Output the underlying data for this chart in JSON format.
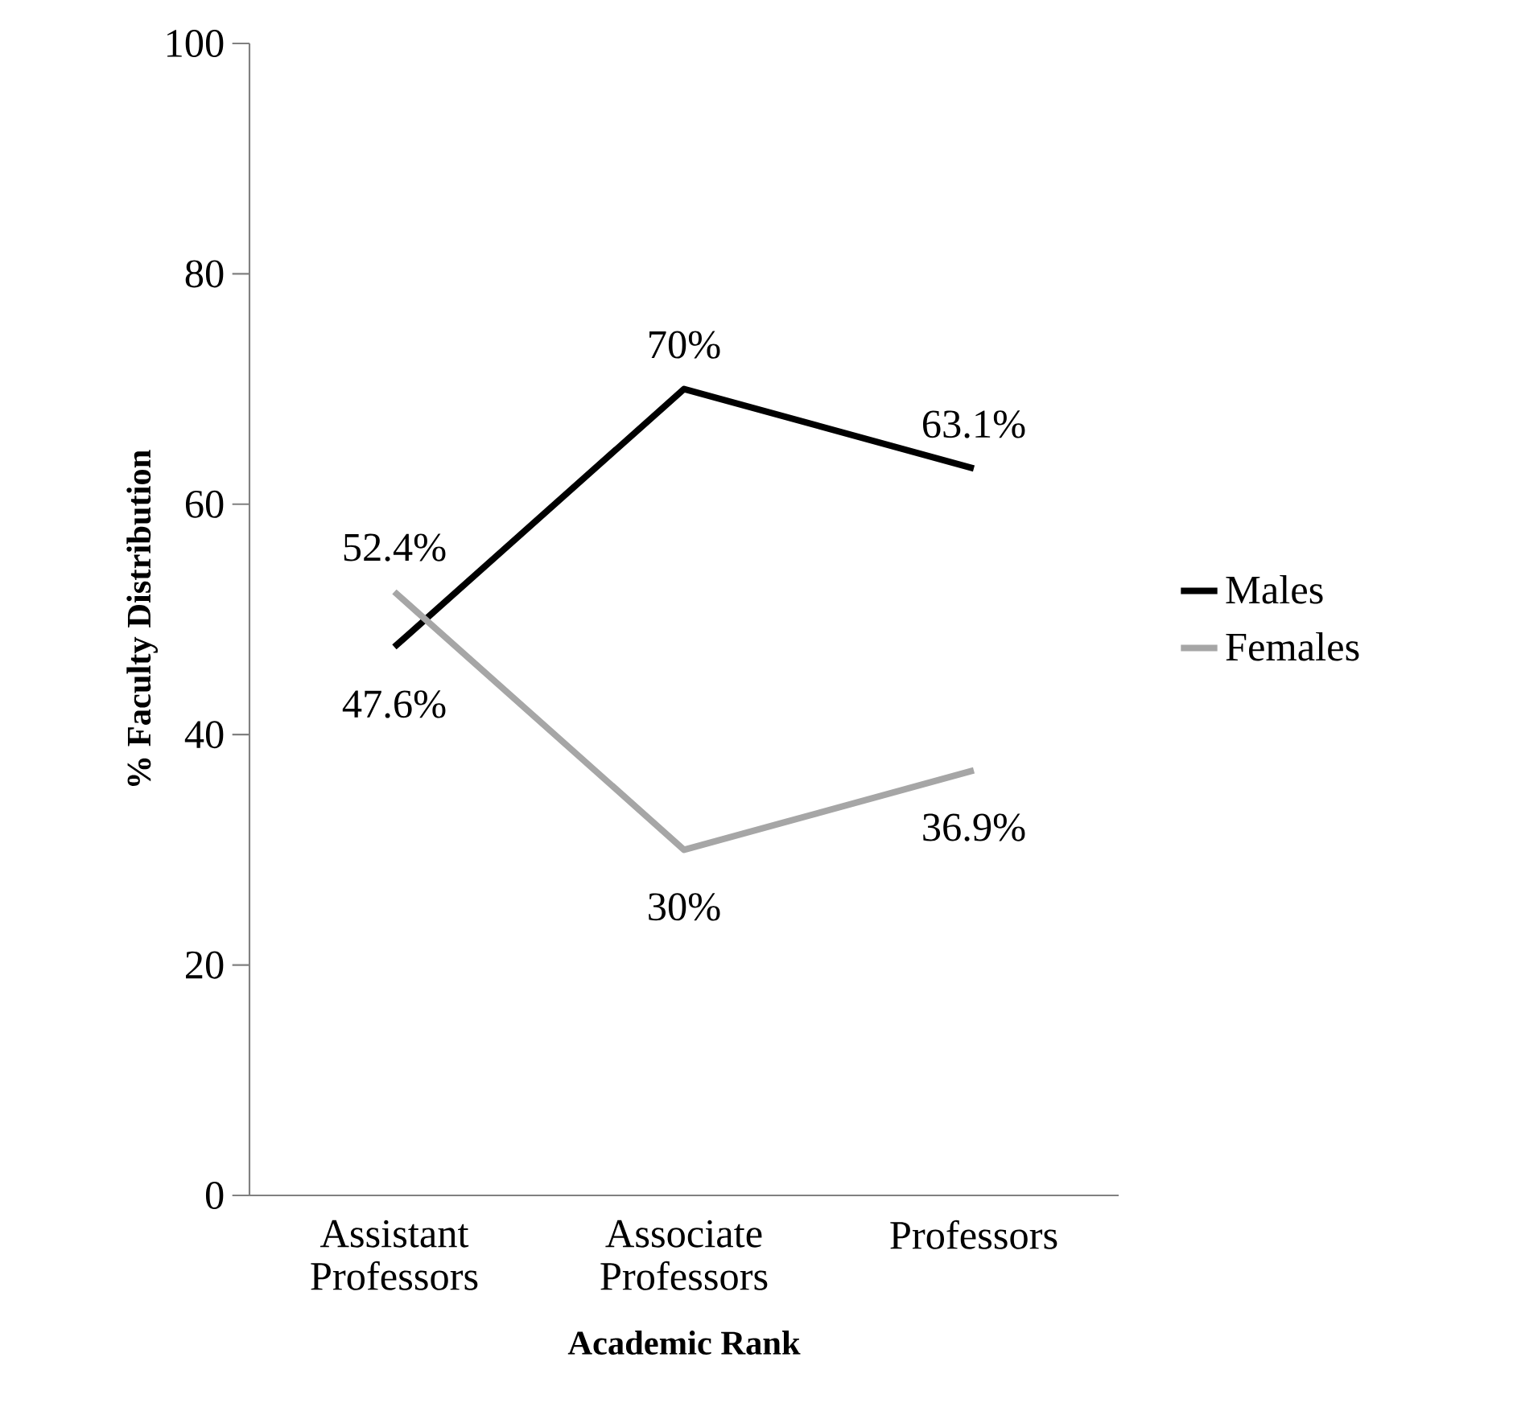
{
  "chart_data": {
    "type": "line",
    "xlabel": "Academic Rank",
    "ylabel": "% Faculty Distribution",
    "categories": [
      "Assistant Professors",
      "Associate Professors",
      "Professors"
    ],
    "series": [
      {
        "name": "Males",
        "color": "#000000",
        "values": [
          47.6,
          70,
          63.1
        ],
        "value_labels": [
          "47.6%",
          "70%",
          "63.1%"
        ]
      },
      {
        "name": "Females",
        "color": "#a6a6a6",
        "values": [
          52.4,
          30,
          36.9
        ],
        "value_labels": [
          "52.4%",
          "30%",
          "36.9%"
        ]
      }
    ],
    "ylim": [
      0,
      100
    ],
    "yticks": [
      0,
      20,
      40,
      60,
      80,
      100
    ],
    "legend": "right",
    "grid": false,
    "marker": "none",
    "line_style": "solid"
  }
}
